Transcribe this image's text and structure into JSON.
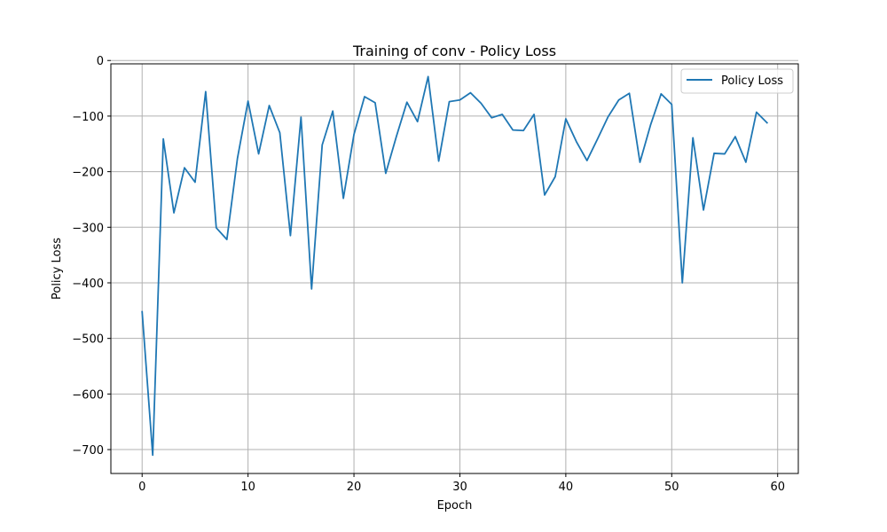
{
  "chart_data": {
    "type": "line",
    "title": "Training of conv - Policy Loss",
    "xlabel": "Epoch",
    "ylabel": "Policy Loss",
    "xlim": [
      -2.95,
      61.95
    ],
    "ylim": [
      -743,
      -6
    ],
    "xticks": [
      0,
      10,
      20,
      30,
      40,
      50,
      60
    ],
    "yticks": [
      0,
      -100,
      -200,
      -300,
      -400,
      -500,
      -600,
      -700
    ],
    "ytick_labels": [
      "0",
      "−100",
      "−200",
      "−300",
      "−400",
      "−500",
      "−600",
      "−700"
    ],
    "grid": true,
    "legend_position": "upper right",
    "series": [
      {
        "name": "Policy Loss",
        "color": "#1f77b4",
        "x": [
          0,
          1,
          2,
          3,
          4,
          5,
          6,
          7,
          8,
          9,
          10,
          11,
          12,
          13,
          14,
          15,
          16,
          17,
          18,
          19,
          20,
          21,
          22,
          23,
          24,
          25,
          26,
          27,
          28,
          29,
          30,
          31,
          32,
          33,
          34,
          35,
          36,
          37,
          38,
          39,
          40,
          41,
          42,
          43,
          44,
          45,
          46,
          47,
          48,
          49,
          50,
          51,
          52,
          53,
          54,
          55,
          56,
          57,
          58,
          59
        ],
        "y": [
          -452,
          -710,
          -141,
          -274,
          -193,
          -219,
          -56,
          -301,
          -322,
          -176,
          -73,
          -168,
          -81,
          -130,
          -315,
          -102,
          -411,
          -152,
          -91,
          -248,
          -133,
          -65,
          -76,
          -203,
          -137,
          -75,
          -110,
          -29,
          -181,
          -74,
          -71,
          -58,
          -77,
          -103,
          -97,
          -125,
          -126,
          -97,
          -242,
          -209,
          -105,
          -146,
          -180,
          -141,
          -101,
          -71,
          -59,
          -183,
          -116,
          -60,
          -79,
          -400,
          -139,
          -269,
          -167,
          -168,
          -137,
          -183,
          -93,
          -112
        ]
      }
    ]
  }
}
